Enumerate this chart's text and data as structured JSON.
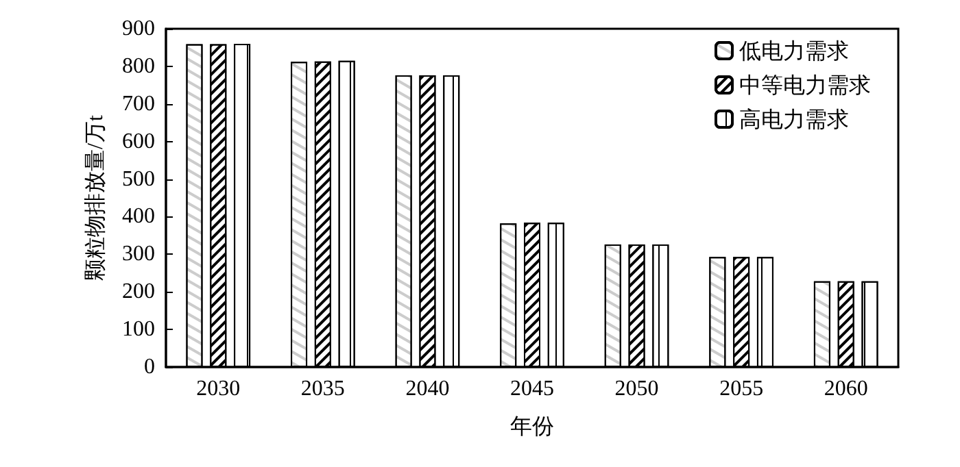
{
  "chart_data": {
    "type": "bar",
    "xlabel": "年份",
    "ylabel": "颗粒物排放量/万t",
    "categories": [
      "2030",
      "2035",
      "2040",
      "2045",
      "2050",
      "2055",
      "2060"
    ],
    "series": [
      {
        "name": "低电力需求",
        "color": "#ffffff",
        "values": [
          859,
          812,
          776,
          382,
          326,
          293,
          228
        ]
      },
      {
        "name": "中等电力需求",
        "color": "#ffffff",
        "values": [
          859,
          813,
          776,
          384,
          326,
          293,
          228
        ]
      },
      {
        "name": "高电力需求",
        "color": "#ffffff",
        "values": [
          860,
          815,
          776,
          384,
          326,
          293,
          228
        ]
      }
    ],
    "ylim": [
      0,
      900
    ],
    "yticks": [
      0,
      100,
      200,
      300,
      400,
      500,
      600,
      700,
      800,
      900
    ],
    "grid": false,
    "legend": "top right"
  }
}
